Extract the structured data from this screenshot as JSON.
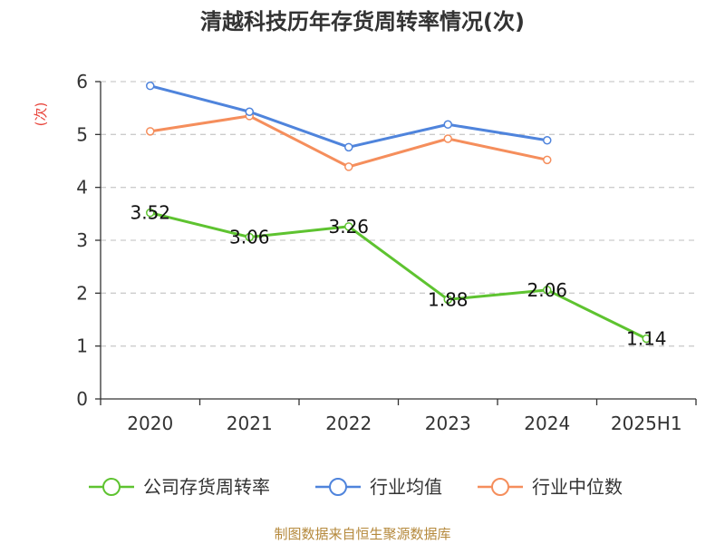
{
  "chart_data": {
    "type": "line",
    "title": "清越科技历年存货周转率情况(次)",
    "ylabel": "(次)",
    "xlabel": "",
    "categories": [
      "2020",
      "2021",
      "2022",
      "2023",
      "2024",
      "2025H1"
    ],
    "ylim": [
      0,
      6
    ],
    "yticks": [
      0,
      1,
      2,
      3,
      4,
      5,
      6
    ],
    "grid": true,
    "legend_position": "bottom",
    "series": [
      {
        "name": "公司存货周转率",
        "color": "#5ec330",
        "values": [
          3.52,
          3.06,
          3.26,
          1.88,
          2.06,
          1.14
        ],
        "labels": [
          "3.52",
          "3.06",
          "3.26",
          "1.88",
          "2.06",
          "1.14"
        ]
      },
      {
        "name": "行业均值",
        "color": "#4f84dc",
        "values": [
          5.92,
          5.43,
          4.76,
          5.19,
          4.89,
          null
        ]
      },
      {
        "name": "行业中位数",
        "color": "#f58e5c",
        "values": [
          5.06,
          5.35,
          4.39,
          4.92,
          4.52,
          null
        ]
      }
    ],
    "source": "制图数据来自恒生聚源数据库"
  }
}
